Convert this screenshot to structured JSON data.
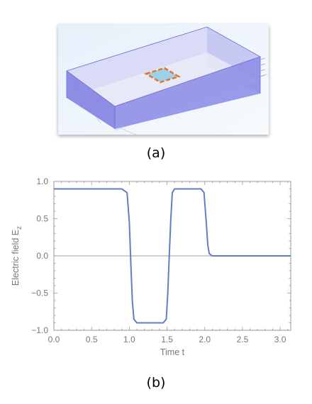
{
  "panel_a": {
    "caption": "(a)"
  },
  "panel_b": {
    "caption": "(b)"
  },
  "colors": {
    "series": "#5f7fc0",
    "frame": "#9a9a9a",
    "zero_line": "#808080",
    "box_side": "#7b7be0",
    "box_top": "#cfcff7",
    "outline": "#e8742a",
    "patch": "#9fd0ea"
  },
  "chart_data": {
    "type": "line",
    "title": "",
    "xlabel": "Time t",
    "ylabel_main": "Electric field E",
    "ylabel_sub": "z",
    "xlim": [
      0,
      3.14
    ],
    "ylim": [
      -1.0,
      1.0
    ],
    "xticks": [
      "0.0",
      "0.5",
      "1.0",
      "1.5",
      "2.0",
      "2.5",
      "3.0"
    ],
    "yticks": [
      "1.0",
      "0.5",
      "0.0",
      "−0.5",
      "−1.0"
    ],
    "xtick_values": [
      0,
      0.5,
      1.0,
      1.5,
      2.0,
      2.5,
      3.0
    ],
    "ytick_values": [
      1.0,
      0.5,
      0.0,
      -0.5,
      -1.0
    ],
    "grid": false,
    "series": [
      {
        "x": [
          0,
          0.9,
          0.97,
          1.0,
          1.02,
          1.04,
          1.06,
          1.1,
          1.45,
          1.49,
          1.51,
          1.53,
          1.55,
          1.57,
          1.6,
          1.95,
          1.99,
          2.02,
          2.04,
          2.06,
          2.1,
          3.14
        ],
        "y": [
          0.9,
          0.9,
          0.85,
          0.45,
          -0.1,
          -0.6,
          -0.85,
          -0.9,
          -0.9,
          -0.85,
          -0.5,
          0.0,
          0.5,
          0.85,
          0.9,
          0.9,
          0.85,
          0.45,
          0.15,
          0.03,
          0.0,
          0.0
        ]
      }
    ]
  }
}
